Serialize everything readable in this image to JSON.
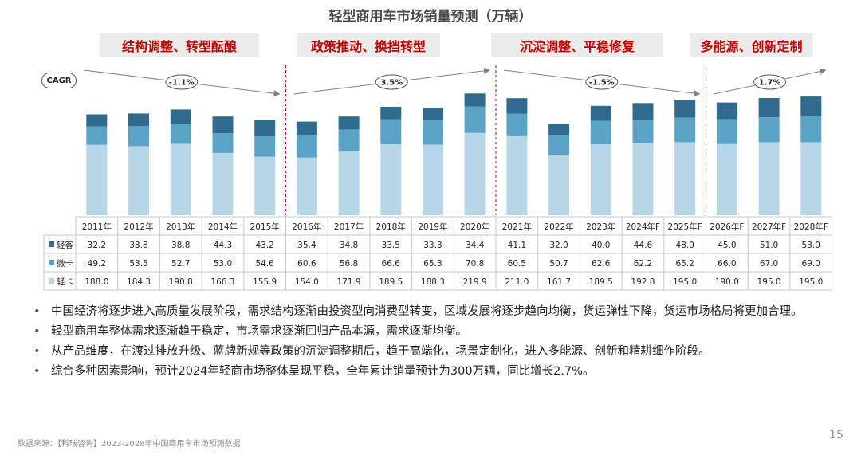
{
  "title": "轻型商用车市场销量预测（万辆）",
  "phases": [
    {
      "label": "结构调整、转型酝酿",
      "cagr": "-1.1%"
    },
    {
      "label": "政策推动、换挡转型",
      "cagr": "3.5%"
    },
    {
      "label": "沉淀调整、平稳修复",
      "cagr": "-1.5%"
    },
    {
      "label": "多能源、创新定制",
      "cagr": "1.7%"
    }
  ],
  "cagr_label": "CAGR",
  "bullets": [
    "中国经济将逐步进入高质量发展阶段，需求结构逐渐由投资型向消费型转变，区域发展将逐步趋向均衡，货运弹性下降，货运市场格局将更加合理。",
    "轻型商用车整体需求逐渐趋于稳定，市场需求逐渐回归产品本源，需求逐渐均衡。",
    "从产品维度，在渡过排放升级、蓝牌新规等政策的沉淀调整期后，趋于高端化，场景定制化，进入多能源、创新和精耕细作阶段。",
    "综合多种因素影响，预计2024年轻商市场整体呈现平稳，全年累计销量预计为300万辆，同比增长2.7%。"
  ],
  "source": "数据来源：【科瑞咨询】2023-2028年中国商用车市场预测数据",
  "page_number": "15",
  "colors": {
    "qingke": "#b7d7e8",
    "weika": "#5ba3c6",
    "jingke": "#2e6b8c",
    "phase_text": "#c00000"
  },
  "chart_data": {
    "type": "bar",
    "stacked": true,
    "categories": [
      "2011年",
      "2012年",
      "2013年",
      "2014年",
      "2015年",
      "2016年",
      "2017年",
      "2018年",
      "2019年",
      "2020年",
      "2021年",
      "2022年",
      "2023年",
      "2024年F",
      "2025年F",
      "2026年F",
      "2027年F",
      "2028年F"
    ],
    "series": [
      {
        "name": "轻客",
        "values": [
          32.2,
          33.8,
          38.8,
          44.3,
          43.2,
          35.4,
          34.8,
          33.5,
          33.3,
          34.4,
          41.1,
          32.0,
          40.0,
          44.6,
          48.0,
          45.0,
          51.0,
          53.0
        ]
      },
      {
        "name": "微卡",
        "values": [
          49.2,
          53.5,
          52.7,
          53.0,
          54.6,
          60.6,
          56.8,
          66.6,
          65.3,
          70.8,
          60.5,
          50.7,
          62.6,
          62.2,
          65.2,
          66.0,
          67.0,
          69.0
        ]
      },
      {
        "name": "轻卡",
        "values": [
          188.0,
          184.3,
          190.8,
          166.3,
          155.9,
          154.0,
          171.9,
          189.5,
          188.3,
          219.9,
          211.0,
          161.7,
          189.5,
          192.8,
          195.0,
          190.0,
          195.0,
          195.0
        ]
      }
    ],
    "value_labels": [
      [
        "32.2",
        "33.8",
        "38.8",
        "44.3",
        "43.2",
        "35.4",
        "34.8",
        "33.5",
        "33.3",
        "34.4",
        "41.1",
        "32.0",
        "40.0",
        "44.6",
        "48.0",
        "45.0",
        "51.0",
        "53.0"
      ],
      [
        "49.2",
        "53.5",
        "52.7",
        "53.0",
        "54.6",
        "60.6",
        "56.8",
        "66.6",
        "65.3",
        "70.8",
        "60.5",
        "50.7",
        "62.6",
        "62.2",
        "65.2",
        "66.0",
        "67.0",
        "69.0"
      ],
      [
        "188.0",
        "184.3",
        "190.8",
        "166.3",
        "155.9",
        "154.0",
        "171.9",
        "189.5",
        "188.3",
        "219.9",
        "211.0",
        "161.7",
        "189.5",
        "192.8",
        "195.0",
        "190.0",
        "195.0",
        "195.0"
      ]
    ],
    "phase_groups": [
      [
        0,
        4
      ],
      [
        5,
        9
      ],
      [
        10,
        14
      ],
      [
        15,
        17
      ]
    ],
    "xlabel": "",
    "ylabel": "",
    "legend": "table-left"
  }
}
